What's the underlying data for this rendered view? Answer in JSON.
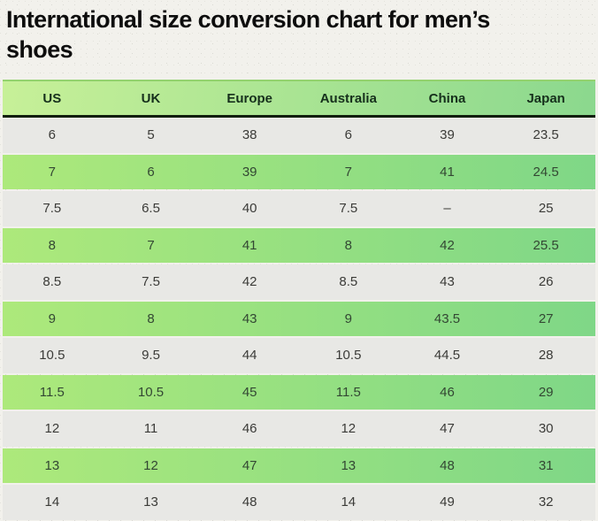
{
  "chart_data": {
    "type": "table",
    "title": "International size conversion chart for men’s shoes",
    "columns": [
      "US",
      "UK",
      "Europe",
      "Australia",
      "China",
      "Japan"
    ],
    "rows": [
      [
        "6",
        "5",
        "38",
        "6",
        "39",
        "23.5"
      ],
      [
        "7",
        "6",
        "39",
        "7",
        "41",
        "24.5"
      ],
      [
        "7.5",
        "6.5",
        "40",
        "7.5",
        "–",
        "25"
      ],
      [
        "8",
        "7",
        "41",
        "8",
        "42",
        "25.5"
      ],
      [
        "8.5",
        "7.5",
        "42",
        "8.5",
        "43",
        "26"
      ],
      [
        "9",
        "8",
        "43",
        "9",
        "43.5",
        "27"
      ],
      [
        "10.5",
        "9.5",
        "44",
        "10.5",
        "44.5",
        "28"
      ],
      [
        "11.5",
        "10.5",
        "45",
        "11.5",
        "46",
        "29"
      ],
      [
        "12",
        "11",
        "46",
        "12",
        "47",
        "30"
      ],
      [
        "13",
        "12",
        "47",
        "13",
        "48",
        "31"
      ],
      [
        "14",
        "13",
        "48",
        "14",
        "49",
        "32"
      ]
    ],
    "row_stripe_pattern": [
      "gray",
      "green",
      "gray",
      "green",
      "gray",
      "green",
      "gray",
      "green",
      "gray",
      "green",
      "gray"
    ],
    "layout_hints": {
      "grid": "off",
      "header_position": "top",
      "column_alignment": "center"
    }
  },
  "colors": {
    "page_background": "#f2f1ec",
    "title_text": "#0d0d0d",
    "header_gradient_start": "#c7f098",
    "header_gradient_end": "#8bd88e",
    "header_top_border": "#93d26e",
    "header_bottom_border": "#101e0b",
    "header_text": "#16301c",
    "row_gray": "#e8e8e5",
    "row_green_gradient_start": "#ade97b",
    "row_green_gradient_end": "#7fd787",
    "cell_text": "#3b3b38",
    "cell_text_green": "#334733"
  }
}
